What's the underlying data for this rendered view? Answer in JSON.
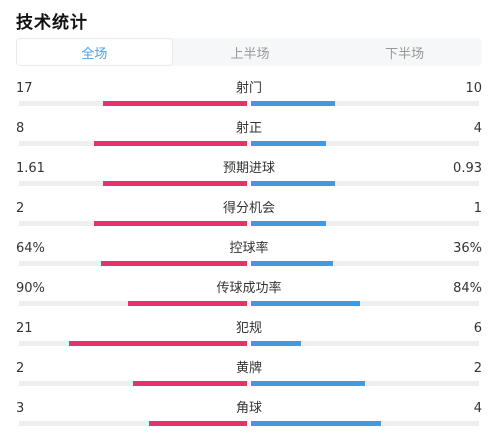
{
  "title": "技术统计",
  "tabs": [
    {
      "label": "全场",
      "active": true
    },
    {
      "label": "上半场",
      "active": false
    },
    {
      "label": "下半场",
      "active": false
    }
  ],
  "colors": {
    "home_bar": "#e2336b",
    "away_bar": "#3b9be8",
    "active_tab": "#4a9ff0"
  },
  "stats": [
    {
      "label": "射门",
      "home": "17",
      "away": "10",
      "home_ratio": 0.63,
      "away_ratio": 0.37
    },
    {
      "label": "射正",
      "home": "8",
      "away": "4",
      "home_ratio": 0.67,
      "away_ratio": 0.33
    },
    {
      "label": "预期进球",
      "home": "1.61",
      "away": "0.93",
      "home_ratio": 0.63,
      "away_ratio": 0.37
    },
    {
      "label": "得分机会",
      "home": "2",
      "away": "1",
      "home_ratio": 0.67,
      "away_ratio": 0.33
    },
    {
      "label": "控球率",
      "home": "64%",
      "away": "36%",
      "home_ratio": 0.64,
      "away_ratio": 0.36
    },
    {
      "label": "传球成功率",
      "home": "90%",
      "away": "84%",
      "home_ratio": 0.52,
      "away_ratio": 0.48
    },
    {
      "label": "犯规",
      "home": "21",
      "away": "6",
      "home_ratio": 0.78,
      "away_ratio": 0.22
    },
    {
      "label": "黄牌",
      "home": "2",
      "away": "2",
      "home_ratio": 0.5,
      "away_ratio": 0.5
    },
    {
      "label": "角球",
      "home": "3",
      "away": "4",
      "home_ratio": 0.43,
      "away_ratio": 0.57
    }
  ]
}
